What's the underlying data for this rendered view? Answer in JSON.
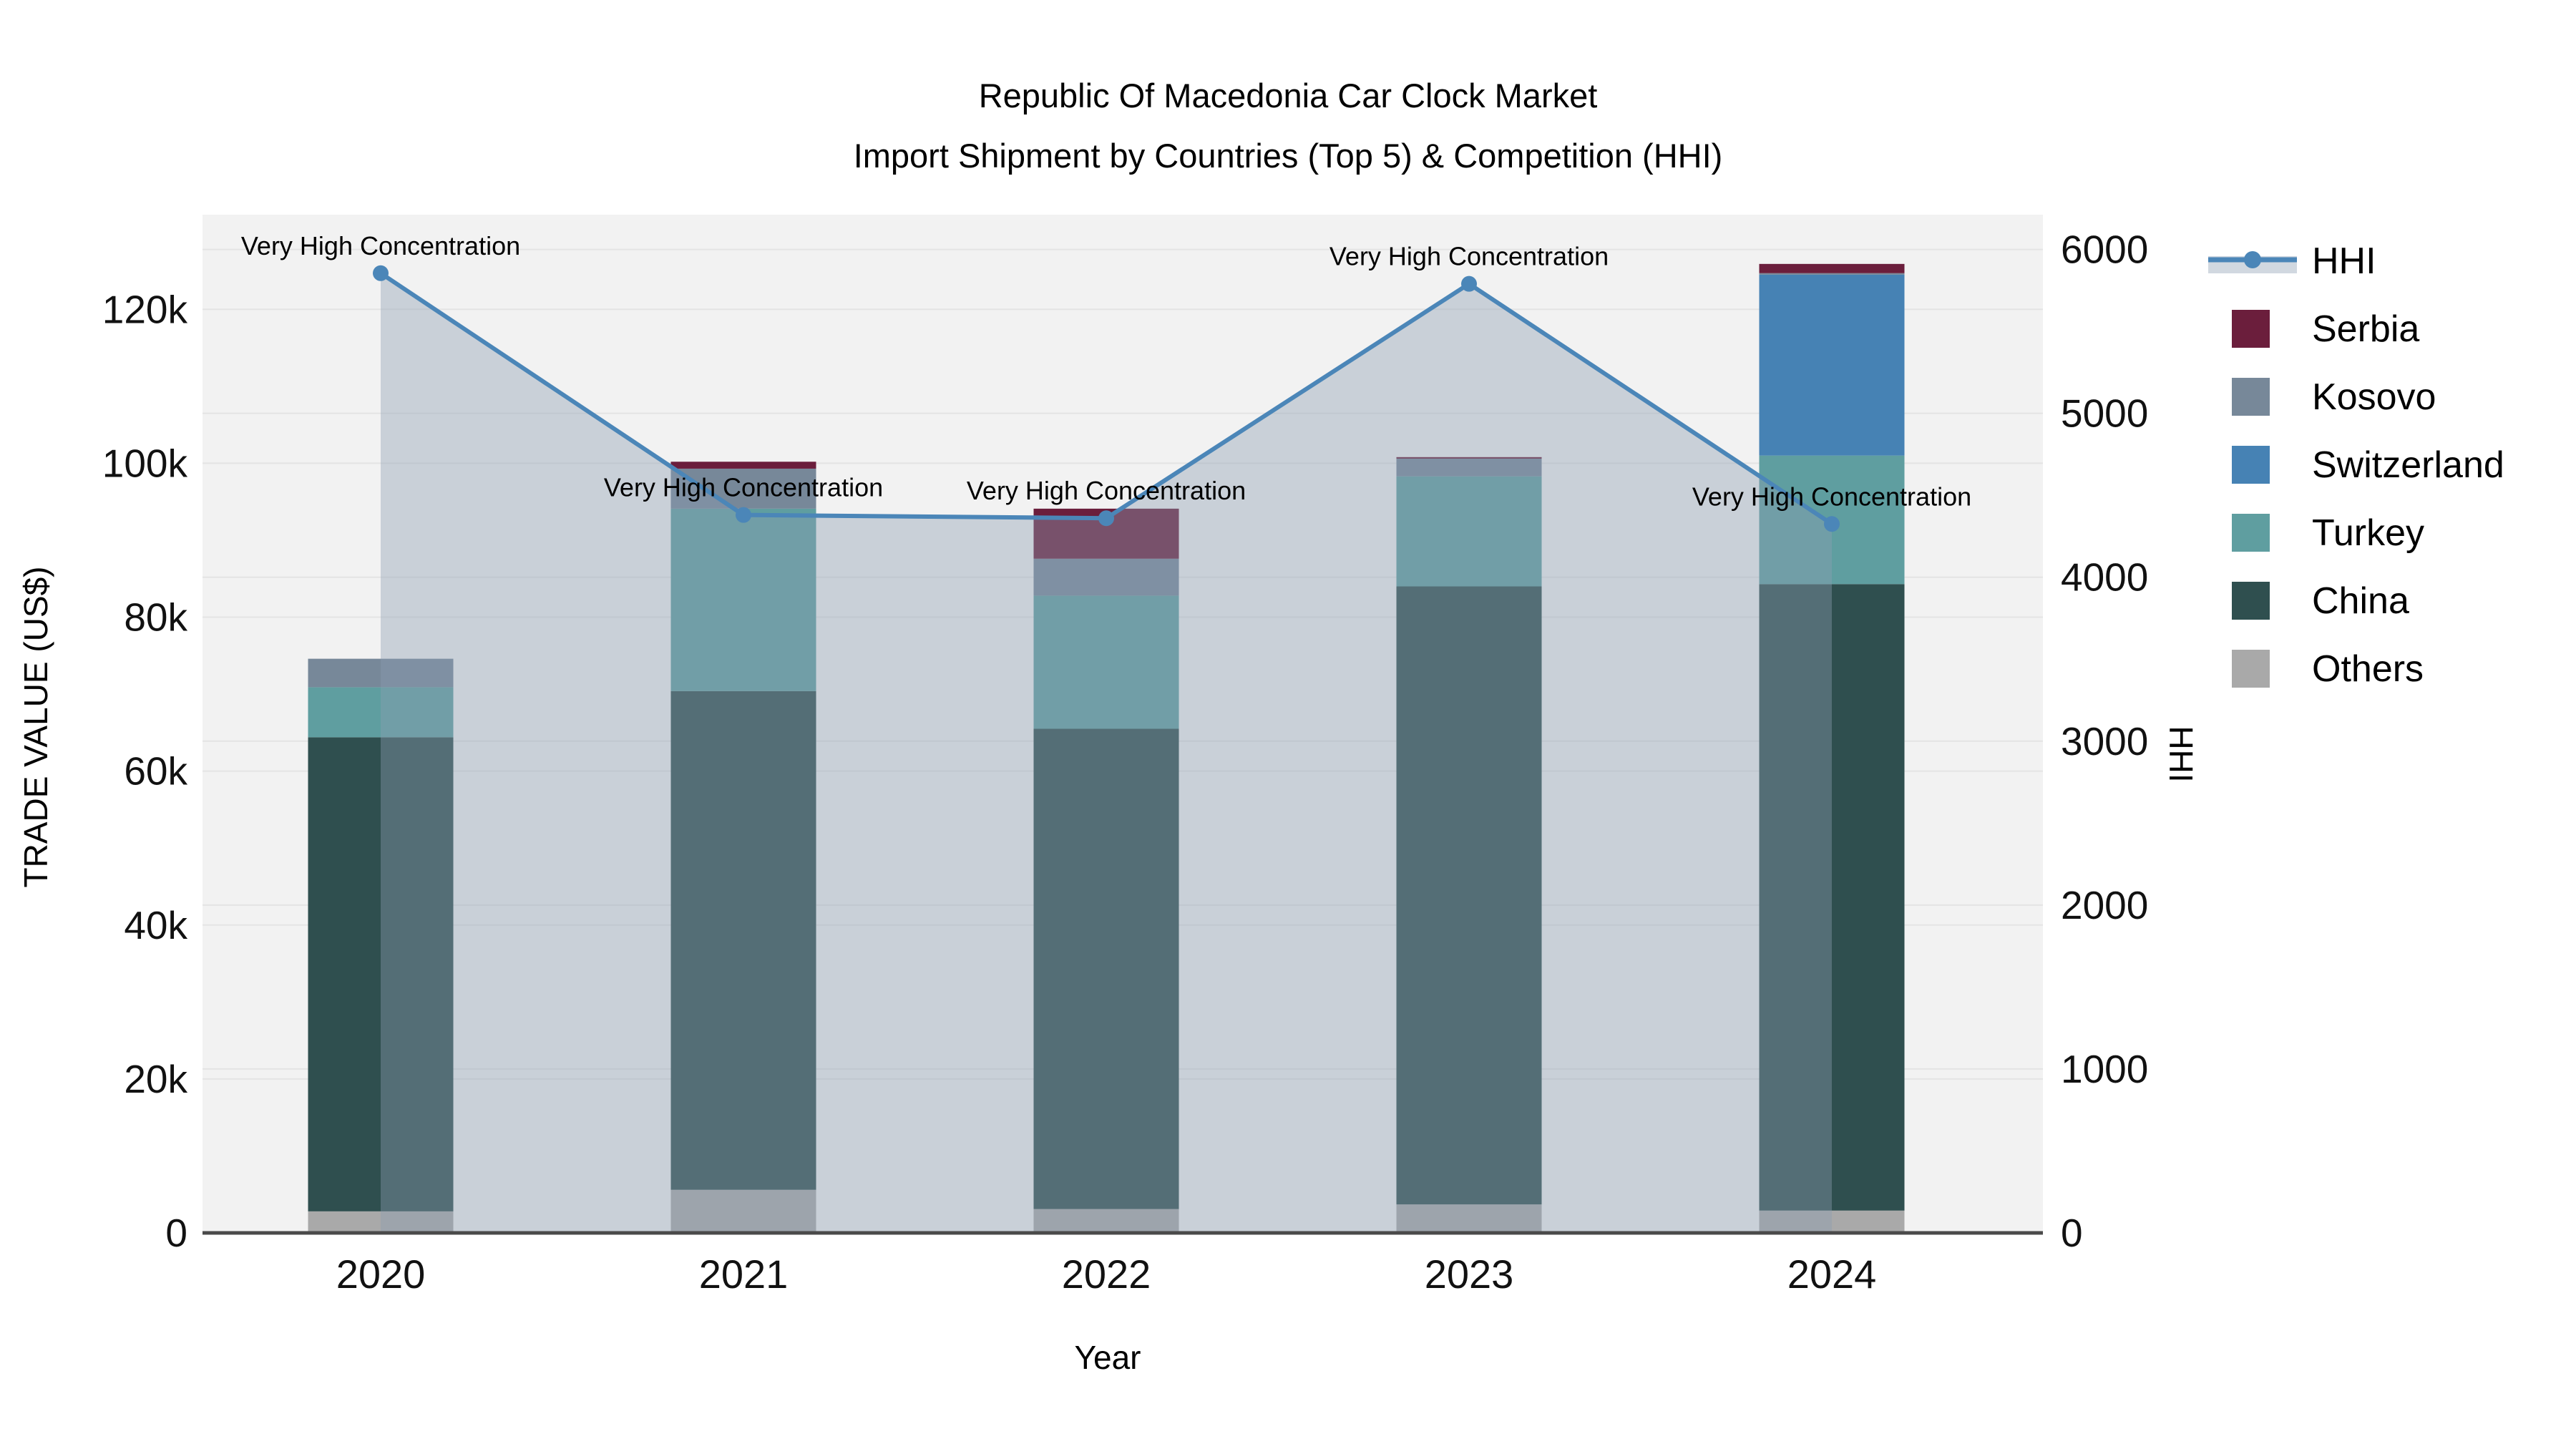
{
  "figure": {
    "title_line1": "Republic Of Macedonia Car Clock Market",
    "title_line2": "Import Shipment by Countries (Top 5) & Competition (HHI)"
  },
  "chart_data": {
    "type": "bar",
    "subtype": "stacked-bar-with-line",
    "title": "Republic Of Macedonia Car Clock Market Import Shipment by Countries (Top 5) & Competition (HHI)",
    "categories": [
      "2020",
      "2021",
      "2022",
      "2023",
      "2024"
    ],
    "x_axis": {
      "title": "Year"
    },
    "y_left": {
      "title": "TRADE VALUE (US$)",
      "tick_values": [
        0,
        20000,
        40000,
        60000,
        80000,
        100000,
        120000
      ],
      "tick_labels": [
        "0",
        "20k",
        "40k",
        "60k",
        "80k",
        "100k",
        "120k"
      ],
      "range": [
        0,
        132300
      ],
      "grid": true
    },
    "y_right": {
      "title": "HHI",
      "tick_values": [
        0,
        1000,
        2000,
        3000,
        4000,
        5000,
        6000
      ],
      "tick_labels": [
        "0",
        "1000",
        "2000",
        "3000",
        "4000",
        "5000",
        "6000"
      ],
      "range": [
        0,
        6212
      ],
      "grid": true
    },
    "bar_series": [
      {
        "name": "Others",
        "color": "#A9A9A9",
        "values": [
          2800,
          5600,
          3100,
          3700,
          2900
        ]
      },
      {
        "name": "China",
        "color": "#2F4F4F",
        "values": [
          61600,
          64800,
          62400,
          80300,
          81400
        ]
      },
      {
        "name": "Turkey",
        "color": "#5F9EA0",
        "values": [
          6500,
          23700,
          17300,
          14300,
          16700
        ]
      },
      {
        "name": "Switzerland",
        "color": "#4682B4",
        "values": [
          0,
          0,
          0,
          0,
          23500
        ]
      },
      {
        "name": "Kosovo",
        "color": "#778899",
        "values": [
          3700,
          5200,
          4800,
          2300,
          200
        ]
      },
      {
        "name": "Serbia",
        "color": "#6B1E3C",
        "values": [
          0,
          900,
          6500,
          200,
          1200
        ]
      }
    ],
    "line_series": {
      "name": "HHI",
      "color": "#4B86B8",
      "area_fill": "rgba(141,158,177,0.40)",
      "values": [
        5855,
        4380,
        4360,
        5790,
        4325
      ]
    },
    "annotations": [
      {
        "category": "2020",
        "text": "Very High Concentration"
      },
      {
        "category": "2021",
        "text": "Very High Concentration"
      },
      {
        "category": "2022",
        "text": "Very High Concentration"
      },
      {
        "category": "2023",
        "text": "Very High Concentration"
      },
      {
        "category": "2024",
        "text": "Very High Concentration"
      }
    ],
    "legend": [
      {
        "label": "HHI",
        "color": "#4B86B8",
        "type": "line"
      },
      {
        "label": "Serbia",
        "color": "#6B1E3C",
        "type": "square"
      },
      {
        "label": "Kosovo",
        "color": "#778899",
        "type": "square"
      },
      {
        "label": "Switzerland",
        "color": "#4682B4",
        "type": "square"
      },
      {
        "label": "Turkey",
        "color": "#5F9EA0",
        "type": "square"
      },
      {
        "label": "China",
        "color": "#2F4F4F",
        "type": "square"
      },
      {
        "label": "Others",
        "color": "#A9A9A9",
        "type": "square"
      }
    ],
    "plot_bg": "#F2F2F2",
    "grid_color": "#E4E4E4",
    "axis_line_color": "#4A4A4A"
  }
}
